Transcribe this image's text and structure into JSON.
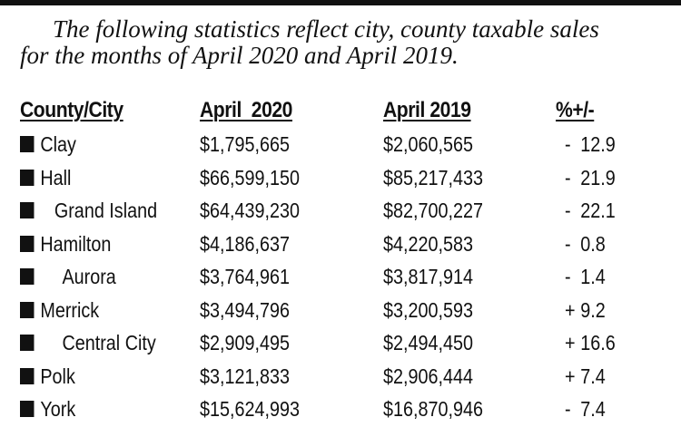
{
  "intro": {
    "line1": "The following statistics reflect city, county taxable sales",
    "line2": "for the months of April 2020 and April 2019."
  },
  "headers": {
    "name": "County/City",
    "y2020": "April  2020",
    "y2019": "April 2019",
    "pct": "%+/-"
  },
  "rows": [
    {
      "name": "Clay",
      "indent": 0,
      "y2020": "$1,795,665",
      "y2019": "$2,060,565",
      "sign": "-",
      "pct": "12.9"
    },
    {
      "name": "Hall",
      "indent": 0,
      "y2020": "$66,599,150",
      "y2019": "$85,217,433",
      "sign": "-",
      "pct": "21.9"
    },
    {
      "name": "Grand Island",
      "indent": 1,
      "y2020": "$64,439,230",
      "y2019": "$82,700,227",
      "sign": "-",
      "pct": "22.1"
    },
    {
      "name": "Hamilton",
      "indent": 0,
      "y2020": "$4,186,637",
      "y2019": "$4,220,583",
      "sign": "-",
      "pct": "0.8"
    },
    {
      "name": "Aurora",
      "indent": 2,
      "y2020": "$3,764,961",
      "y2019": "$3,817,914",
      "sign": "-",
      "pct": "1.4"
    },
    {
      "name": "Merrick",
      "indent": 0,
      "y2020": "$3,494,796",
      "y2019": "$3,200,593",
      "sign": "+",
      "pct": "9.2"
    },
    {
      "name": "Central City",
      "indent": 2,
      "y2020": "$2,909,495",
      "y2019": "$2,494,450",
      "sign": "+",
      "pct": "16.6"
    },
    {
      "name": "Polk",
      "indent": 0,
      "y2020": "$3,121,833",
      "y2019": "$2,906,444",
      "sign": "+",
      "pct": "7.4"
    },
    {
      "name": "York",
      "indent": 0,
      "y2020": "$15,624,993",
      "y2019": "$16,870,946",
      "sign": "-",
      "pct": "7.4"
    }
  ]
}
